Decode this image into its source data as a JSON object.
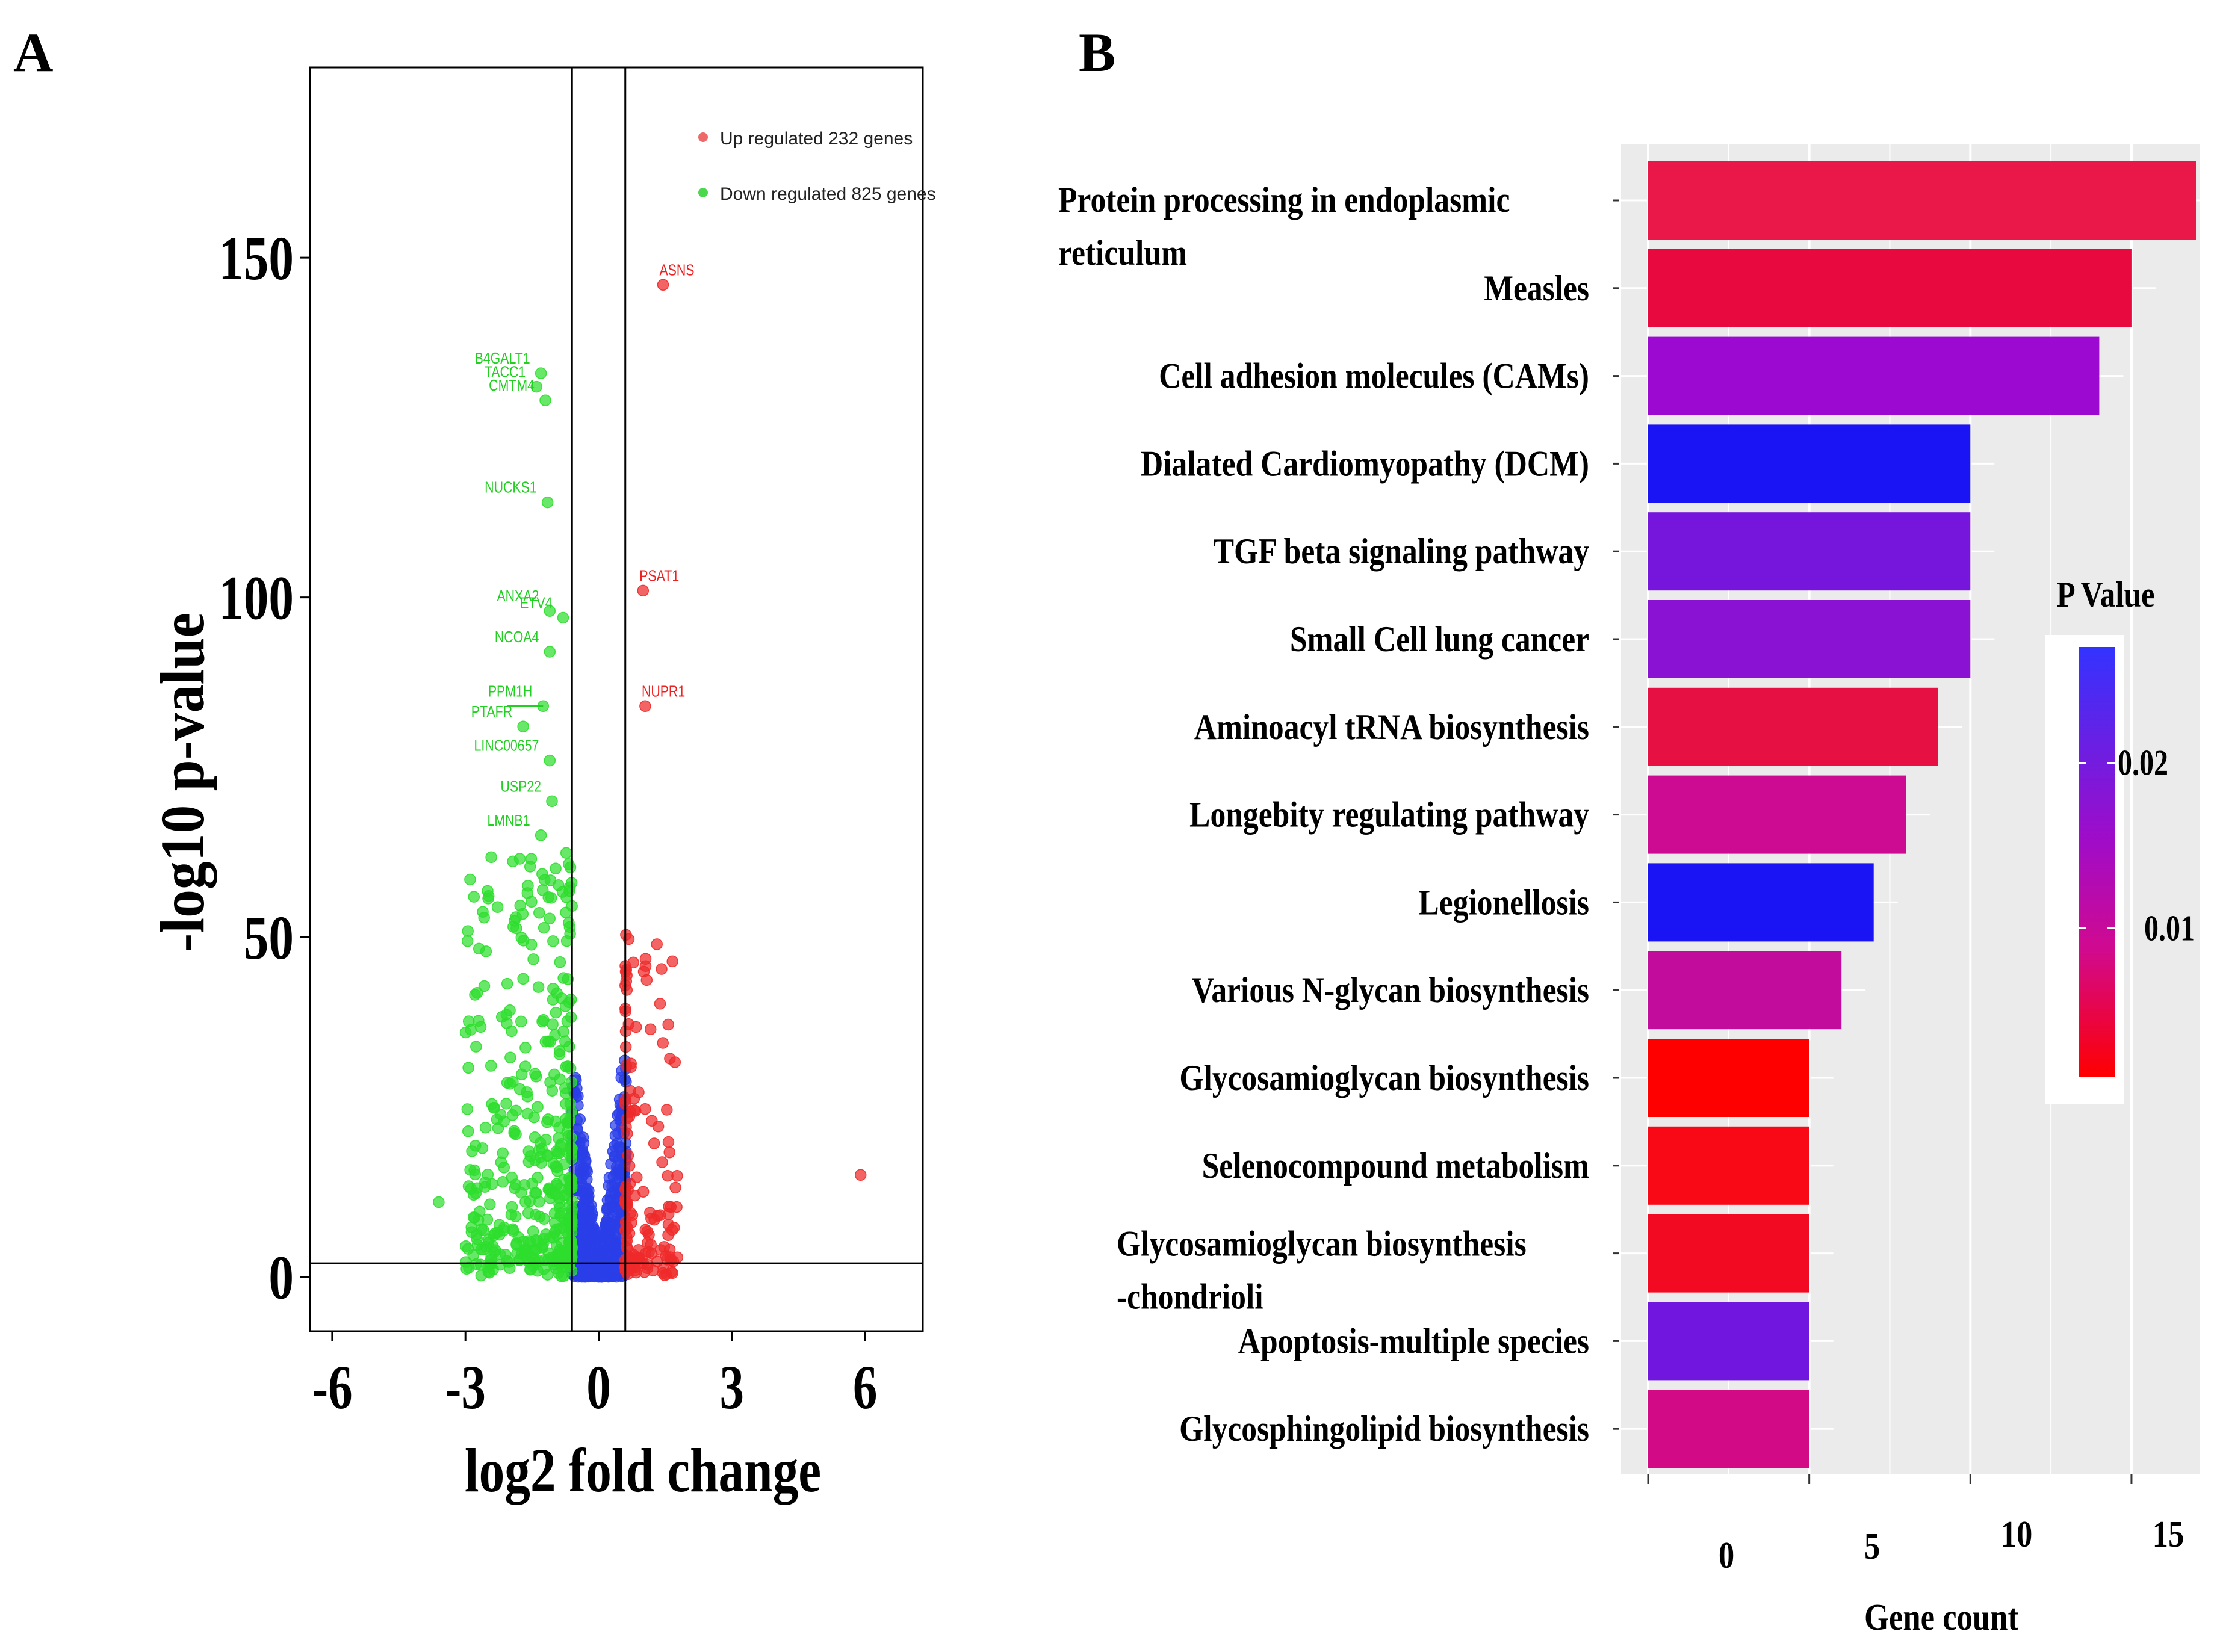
{
  "panel_a_letter": "A",
  "panel_b_letter": "B",
  "chart_data": [
    {
      "type": "scatter",
      "subtype": "volcano",
      "xlabel": "log2 fold change",
      "ylabel": "-log10 p-value",
      "xlim": [
        -6.5,
        7.3
      ],
      "ylim": [
        -8,
        178
      ],
      "x_ticks": [
        -6,
        -3,
        0,
        3,
        6
      ],
      "x_tick_labels": [
        "-6",
        "-3",
        "0",
        "3",
        "6"
      ],
      "y_ticks": [
        0,
        50,
        100,
        150
      ],
      "y_tick_labels": [
        "0",
        "50",
        "100",
        "150"
      ],
      "vertical_lines": [
        -0.6,
        0.6
      ],
      "horizontal_line": 2,
      "legend": [
        {
          "label": "Up regulated 232 genes",
          "color": "#ee6a6a"
        },
        {
          "label": "Down regulated 825 genes",
          "color": "#4cd84c"
        }
      ],
      "colors": {
        "up": "#ef2a2a",
        "down": "#2ede2e",
        "ns": "#2a3fe8"
      },
      "labeled_genes": [
        {
          "name": "ASNS",
          "x": 1.45,
          "y": 146,
          "group": "up"
        },
        {
          "name": "PSAT1",
          "x": 1.0,
          "y": 101,
          "group": "up"
        },
        {
          "name": "NUPR1",
          "x": 1.05,
          "y": 84,
          "group": "up"
        },
        {
          "name": "B4GALT1",
          "x": -1.3,
          "y": 133,
          "group": "down"
        },
        {
          "name": "TACC1",
          "x": -1.4,
          "y": 131,
          "group": "down"
        },
        {
          "name": "CMTM4",
          "x": -1.2,
          "y": 129,
          "group": "down"
        },
        {
          "name": "NUCKS1",
          "x": -1.15,
          "y": 114,
          "group": "down"
        },
        {
          "name": "ANXA2",
          "x": -1.1,
          "y": 98,
          "group": "down"
        },
        {
          "name": "ETV4",
          "x": -0.8,
          "y": 97,
          "group": "down"
        },
        {
          "name": "NCOA4",
          "x": -1.1,
          "y": 92,
          "group": "down"
        },
        {
          "name": "PPM1H",
          "x": -1.25,
          "y": 84,
          "group": "down"
        },
        {
          "name": "PTAFR",
          "x": -1.7,
          "y": 81,
          "group": "down"
        },
        {
          "name": "LINC00657",
          "x": -1.1,
          "y": 76,
          "group": "down"
        },
        {
          "name": "USP22",
          "x": -1.05,
          "y": 70,
          "group": "down"
        },
        {
          "name": "LMNB1",
          "x": -1.3,
          "y": 65,
          "group": "down"
        }
      ],
      "outliers": [
        {
          "x": 5.9,
          "y": 15,
          "group": "up"
        },
        {
          "x": -3.6,
          "y": 11,
          "group": "down"
        }
      ]
    },
    {
      "type": "bar",
      "orientation": "horizontal",
      "xlabel": "Gene count",
      "x_tick_labels": [
        "0",
        "5",
        "10",
        "15"
      ],
      "xlim": [
        0,
        17
      ],
      "legend_title": "P Value",
      "colorbar_range": [
        0.001,
        0.027
      ],
      "colorbar_ticks": [
        {
          "value": 0.02,
          "label": "0.02"
        },
        {
          "value": 0.01,
          "label": "0.01"
        }
      ],
      "categories": [
        [
          "Protein processing in endoplasmic",
          "reticulum"
        ],
        [
          "Measles"
        ],
        [
          "Cell adhesion molecules (CAMs)"
        ],
        [
          "Dialated Cardiomyopathy (DCM)"
        ],
        [
          "TGF beta signaling pathway"
        ],
        [
          "Small Cell lung cancer"
        ],
        [
          "Aminoacyl tRNA biosynthesis"
        ],
        [
          "Longebity regulating pathway"
        ],
        [
          "Legionellosis"
        ],
        [
          "Various N-glycan biosynthesis"
        ],
        [
          "Glycosamioglycan biosynthesis"
        ],
        [
          "Selenocompound metabolism"
        ],
        [
          "Glycosamioglycan biosynthesis",
          "-chondrioli"
        ],
        [
          "Apoptosis-multiple species"
        ],
        [
          "Glycosphingolipid biosynthesis"
        ]
      ],
      "values": [
        17,
        15,
        14,
        10,
        10,
        10,
        9,
        8,
        7,
        6,
        5,
        5,
        5,
        5,
        5
      ],
      "bar_colors": [
        "#ea1848",
        "#e8093e",
        "#9c09d0",
        "#1a14f4",
        "#7616dc",
        "#8a12d2",
        "#e71042",
        "#cc0a92",
        "#1a14f4",
        "#c20c9c",
        "#ff0000",
        "#f90816",
        "#f20a22",
        "#7016de",
        "#d20a86"
      ]
    }
  ]
}
